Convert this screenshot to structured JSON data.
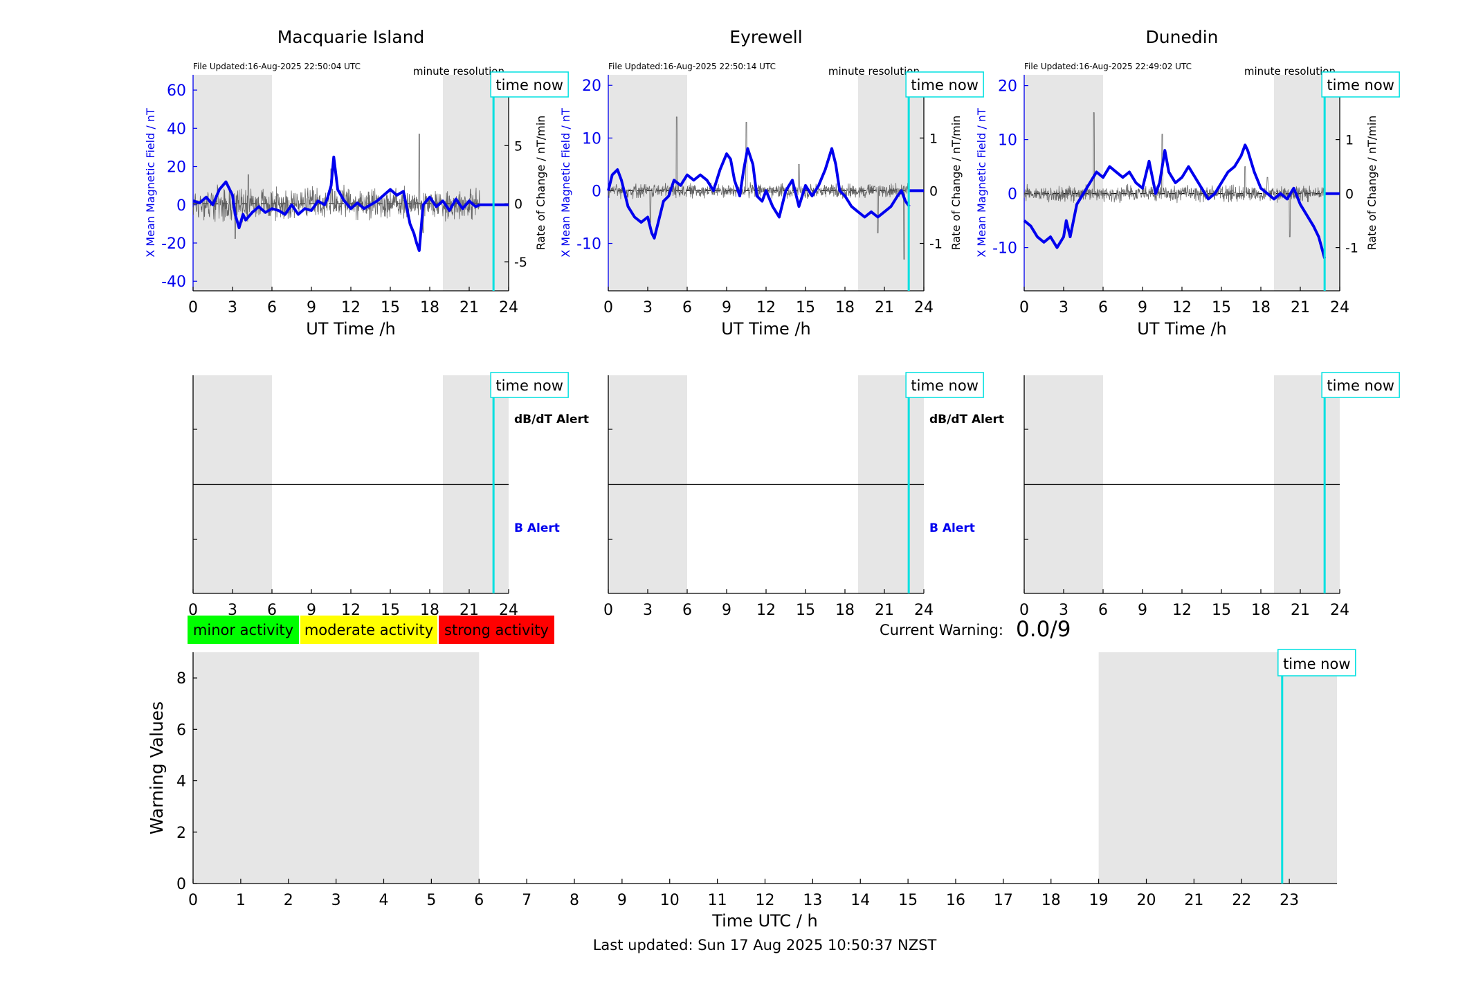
{
  "colors": {
    "mag": "#0000ee",
    "rate": "#555555",
    "now": "#00e0e0",
    "shade": "#e6e6e6",
    "minor": "#00ff00",
    "moderate": "#ffff00",
    "strong": "#ff0000"
  },
  "time_now": 22.85,
  "stations": [
    {
      "title": "Macquarie Island",
      "file_updated": "File Updated:16-Aug-2025 22:50:04 UTC",
      "resolution": "minute resolution",
      "ylabel_left": "X Mean Magnetic Field / nT",
      "ylabel_right": "Rate of Change / nT/min",
      "xlabel": "UT Time /h",
      "time_now_label": "time now",
      "ylim_left": [
        -45,
        68
      ],
      "ticks_left": [
        -40,
        -20,
        0,
        20,
        40,
        60
      ],
      "ylim_right": [
        -7.5,
        11.1
      ],
      "ticks_right": [
        -5,
        0,
        5,
        10
      ],
      "shade": [
        [
          0,
          6
        ],
        [
          19,
          24
        ]
      ],
      "data_end": 21.8,
      "mag_points": [
        [
          0,
          2
        ],
        [
          0.5,
          1
        ],
        [
          1,
          4
        ],
        [
          1.5,
          0
        ],
        [
          2,
          8
        ],
        [
          2.5,
          12
        ],
        [
          3,
          5
        ],
        [
          3.2,
          -5
        ],
        [
          3.5,
          -12
        ],
        [
          3.8,
          -5
        ],
        [
          4,
          -8
        ],
        [
          4.5,
          -4
        ],
        [
          5,
          -1
        ],
        [
          5.5,
          -4
        ],
        [
          6,
          -2
        ],
        [
          6.5,
          -3
        ],
        [
          7,
          -5
        ],
        [
          7.5,
          0
        ],
        [
          8,
          -5
        ],
        [
          8.5,
          -2
        ],
        [
          9,
          -3
        ],
        [
          9.5,
          2
        ],
        [
          10,
          0
        ],
        [
          10.2,
          3
        ],
        [
          10.5,
          10
        ],
        [
          10.7,
          25
        ],
        [
          11,
          8
        ],
        [
          11.5,
          2
        ],
        [
          12,
          -2
        ],
        [
          12.5,
          1
        ],
        [
          13,
          -2
        ],
        [
          13.5,
          0
        ],
        [
          14,
          2
        ],
        [
          14.5,
          5
        ],
        [
          15,
          8
        ],
        [
          15.5,
          5
        ],
        [
          16,
          7
        ],
        [
          16.5,
          -10
        ],
        [
          16.8,
          -15
        ],
        [
          17,
          -20
        ],
        [
          17.2,
          -24
        ],
        [
          17.5,
          0
        ],
        [
          18,
          4
        ],
        [
          18.5,
          -1
        ],
        [
          19,
          2
        ],
        [
          19.5,
          -3
        ],
        [
          20,
          3
        ],
        [
          20.5,
          -2
        ],
        [
          21,
          2
        ],
        [
          21.5,
          -1
        ],
        [
          21.8,
          0
        ]
      ],
      "flat_after": [
        21.8,
        0
      ],
      "rate_amp": 1.2,
      "rate_spikes": [
        [
          3.2,
          -3
        ],
        [
          4.2,
          2.5
        ],
        [
          10.5,
          3
        ],
        [
          17.2,
          6
        ],
        [
          17.5,
          -2.5
        ]
      ],
      "alert_top": "dB/dT Alert",
      "alert_bottom": "B Alert"
    },
    {
      "title": "Eyrewell",
      "file_updated": "File Updated:16-Aug-2025 22:50:14 UTC",
      "resolution": "minute resolution",
      "ylabel_left": "X Mean Magnetic Field / nT",
      "ylabel_right": "Rate of Change / nT/min",
      "xlabel": "UT Time /h",
      "time_now_label": "time now",
      "ylim_left": [
        -19,
        22
      ],
      "ticks_left": [
        -10,
        0,
        10,
        20
      ],
      "ylim_right": [
        -1.9,
        2.2
      ],
      "ticks_right": [
        -1,
        0,
        1,
        2
      ],
      "shade": [
        [
          0,
          6
        ],
        [
          19,
          24
        ]
      ],
      "data_end": 22.9,
      "mag_points": [
        [
          0,
          0
        ],
        [
          0.3,
          3
        ],
        [
          0.7,
          4
        ],
        [
          1,
          2
        ],
        [
          1.5,
          -3
        ],
        [
          2,
          -5
        ],
        [
          2.5,
          -6
        ],
        [
          3,
          -5
        ],
        [
          3.3,
          -8
        ],
        [
          3.5,
          -9
        ],
        [
          3.8,
          -6
        ],
        [
          4.2,
          -2
        ],
        [
          4.6,
          -1
        ],
        [
          5,
          2
        ],
        [
          5.5,
          1
        ],
        [
          6,
          3
        ],
        [
          6.5,
          2
        ],
        [
          7,
          3
        ],
        [
          7.5,
          2
        ],
        [
          8,
          0
        ],
        [
          8.5,
          4
        ],
        [
          9,
          7
        ],
        [
          9.3,
          6
        ],
        [
          9.6,
          2
        ],
        [
          10,
          -1
        ],
        [
          10.3,
          4
        ],
        [
          10.6,
          8
        ],
        [
          11,
          5
        ],
        [
          11.3,
          -1
        ],
        [
          11.7,
          -2
        ],
        [
          12,
          0
        ],
        [
          12.5,
          -3
        ],
        [
          13,
          -5
        ],
        [
          13.5,
          0
        ],
        [
          14,
          2
        ],
        [
          14.5,
          -3
        ],
        [
          15,
          1
        ],
        [
          15.5,
          -1
        ],
        [
          16,
          1
        ],
        [
          16.5,
          4
        ],
        [
          17,
          8
        ],
        [
          17.3,
          5
        ],
        [
          17.6,
          0
        ],
        [
          18,
          -1
        ],
        [
          18.5,
          -3
        ],
        [
          19,
          -4
        ],
        [
          19.5,
          -5
        ],
        [
          20,
          -4
        ],
        [
          20.5,
          -5
        ],
        [
          21,
          -4
        ],
        [
          21.5,
          -3
        ],
        [
          22,
          -1
        ],
        [
          22.3,
          0
        ],
        [
          22.6,
          -2
        ],
        [
          22.9,
          -3
        ]
      ],
      "flat_after": [
        22.9,
        0
      ],
      "rate_amp": 0.12,
      "rate_spikes": [
        [
          3.2,
          -0.6
        ],
        [
          5.2,
          1.4
        ],
        [
          10.5,
          1.3
        ],
        [
          14.5,
          0.5
        ],
        [
          20.5,
          -0.8
        ],
        [
          22.5,
          -1.3
        ]
      ],
      "alert_top": "dB/dT Alert",
      "alert_bottom": "B Alert"
    },
    {
      "title": "Dunedin",
      "file_updated": "File Updated:16-Aug-2025 22:49:02 UTC",
      "resolution": "minute resolution",
      "ylabel_left": "X Mean Magnetic Field / nT",
      "ylabel_right": "Rate of Change / nT/min",
      "xlabel": "UT Time /h",
      "time_now_label": "time now",
      "ylim_left": [
        -18,
        22
      ],
      "ticks_left": [
        -10,
        0,
        10,
        20
      ],
      "ylim_right": [
        -1.8,
        2.2
      ],
      "ticks_right": [
        -1,
        0,
        1,
        2
      ],
      "shade": [
        [
          0,
          6
        ],
        [
          19,
          24
        ]
      ],
      "data_end": 22.85,
      "mag_points": [
        [
          0,
          -5
        ],
        [
          0.5,
          -6
        ],
        [
          1,
          -8
        ],
        [
          1.5,
          -9
        ],
        [
          2,
          -8
        ],
        [
          2.5,
          -10
        ],
        [
          3,
          -8
        ],
        [
          3.2,
          -5
        ],
        [
          3.5,
          -8
        ],
        [
          4,
          -2
        ],
        [
          4.5,
          0
        ],
        [
          5,
          2
        ],
        [
          5.5,
          4
        ],
        [
          6,
          3
        ],
        [
          6.5,
          5
        ],
        [
          7,
          4
        ],
        [
          7.5,
          3
        ],
        [
          8,
          4
        ],
        [
          8.5,
          2
        ],
        [
          9,
          1
        ],
        [
          9.5,
          6
        ],
        [
          10,
          0
        ],
        [
          10.3,
          2
        ],
        [
          10.7,
          8
        ],
        [
          11,
          4
        ],
        [
          11.5,
          2
        ],
        [
          12,
          3
        ],
        [
          12.5,
          5
        ],
        [
          13,
          3
        ],
        [
          13.5,
          1
        ],
        [
          14,
          -1
        ],
        [
          14.5,
          0
        ],
        [
          15,
          2
        ],
        [
          15.5,
          4
        ],
        [
          16,
          5
        ],
        [
          16.5,
          7
        ],
        [
          16.8,
          9
        ],
        [
          17,
          8
        ],
        [
          17.5,
          4
        ],
        [
          18,
          1
        ],
        [
          18.5,
          0
        ],
        [
          19,
          -1
        ],
        [
          19.5,
          0
        ],
        [
          20,
          -1
        ],
        [
          20.5,
          1
        ],
        [
          21,
          -2
        ],
        [
          21.5,
          -4
        ],
        [
          22,
          -6
        ],
        [
          22.4,
          -8
        ],
        [
          22.85,
          -12
        ]
      ],
      "flat_after": [
        22.85,
        0
      ],
      "rate_amp": 0.13,
      "rate_spikes": [
        [
          5.3,
          1.5
        ],
        [
          10.5,
          1.1
        ],
        [
          16.8,
          0.5
        ],
        [
          18.5,
          0.3
        ],
        [
          20.2,
          -0.8
        ]
      ],
      "alert_top": "",
      "alert_bottom": ""
    }
  ],
  "warning": {
    "ylabel": "Warning Values",
    "xlabel": "Time UTC / h",
    "time_now_label": "time now",
    "ylim": [
      0,
      9
    ],
    "ticks_y": [
      0,
      2,
      4,
      6,
      8
    ],
    "xlim": [
      0,
      24
    ],
    "shade": [
      [
        0,
        6
      ],
      [
        19,
        24
      ]
    ],
    "current_label": "Current Warning:",
    "current_value": "0.0/9",
    "legend": [
      "minor activity",
      "moderate activity",
      "strong activity"
    ]
  },
  "last_updated": "Last updated: Sun 17 Aug 2025 10:50:37 NZST"
}
